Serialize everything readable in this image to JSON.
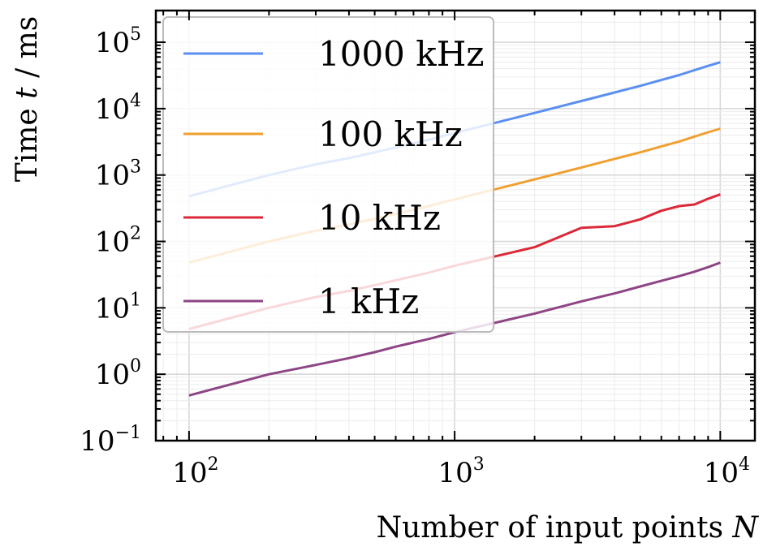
{
  "chart_data": {
    "type": "line",
    "xlabel": {
      "text": "Number of input points ",
      "var": "N"
    },
    "ylabel": {
      "text": "Time ",
      "var": "t",
      "unit": " / ms"
    },
    "xscale": "log",
    "yscale": "log",
    "xlim": [
      75,
      13500
    ],
    "ylim": [
      0.1,
      300000
    ],
    "grid": true,
    "legend_position": "top-left",
    "x_ticks": [
      {
        "base": "10",
        "exp": "2",
        "value": 100
      },
      {
        "base": "10",
        "exp": "3",
        "value": 1000
      },
      {
        "base": "10",
        "exp": "4",
        "value": 10000
      }
    ],
    "y_ticks": [
      {
        "base": "10",
        "exp": "−1",
        "value": 0.1
      },
      {
        "base": "10",
        "exp": "0",
        "value": 1
      },
      {
        "base": "10",
        "exp": "1",
        "value": 10
      },
      {
        "base": "10",
        "exp": "2",
        "value": 100
      },
      {
        "base": "10",
        "exp": "3",
        "value": 1000
      },
      {
        "base": "10",
        "exp": "4",
        "value": 10000
      },
      {
        "base": "10",
        "exp": "5",
        "value": 100000
      }
    ],
    "x": [
      100,
      200,
      300,
      400,
      500,
      600,
      700,
      800,
      900,
      1000,
      2000,
      3000,
      4000,
      5000,
      6000,
      7000,
      8000,
      9000,
      10000
    ],
    "series": [
      {
        "name": "1000 kHz",
        "color": "#5b8ff0",
        "values": [
          480,
          1000,
          1450,
          1800,
          2200,
          2600,
          3000,
          3400,
          3850,
          4300,
          8600,
          13000,
          17500,
          22000,
          27000,
          32000,
          38000,
          44000,
          50000
        ]
      },
      {
        "name": "100 kHz",
        "color": "#f0a030",
        "values": [
          48,
          100,
          145,
          180,
          220,
          260,
          300,
          340,
          385,
          430,
          860,
          1300,
          1750,
          2200,
          2700,
          3200,
          3800,
          4400,
          5000
        ]
      },
      {
        "name": "10 kHz",
        "color": "#dc2838",
        "values": [
          4.8,
          10,
          14.5,
          18,
          22,
          26,
          30,
          34,
          38.5,
          43,
          82,
          160,
          170,
          215,
          290,
          340,
          360,
          440,
          510
        ]
      },
      {
        "name": "1 kHz",
        "color": "#8e4585",
        "values": [
          0.48,
          1.0,
          1.38,
          1.75,
          2.15,
          2.6,
          3.0,
          3.4,
          3.85,
          4.3,
          8.2,
          12.5,
          16.5,
          21,
          25.5,
          30,
          35,
          41,
          48
        ]
      }
    ]
  }
}
